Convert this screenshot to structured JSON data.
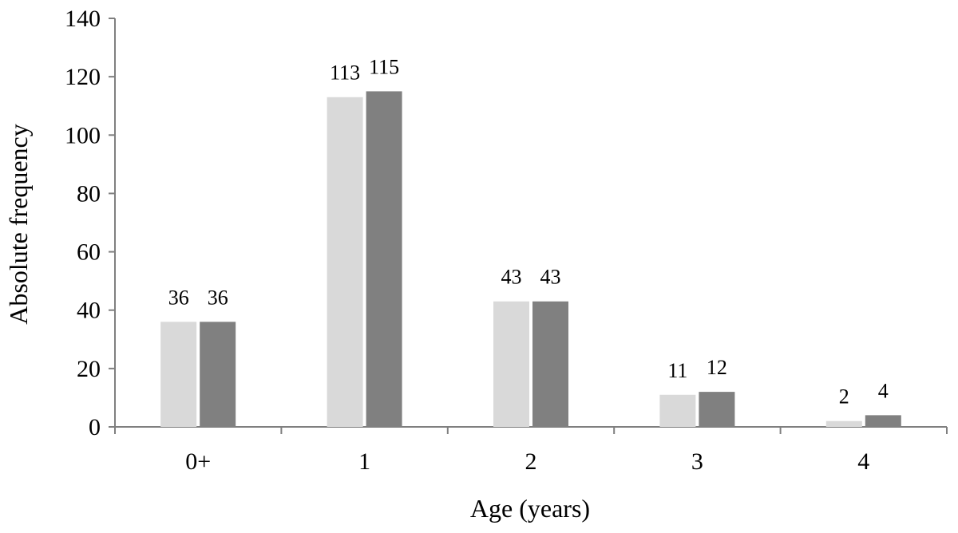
{
  "chart_data": {
    "type": "bar",
    "categories": [
      "0+",
      "1",
      "2",
      "3",
      "4"
    ],
    "series": [
      {
        "values": [
          36,
          113,
          43,
          11,
          2
        ],
        "color": "#d9d9d9"
      },
      {
        "values": [
          36,
          115,
          43,
          12,
          4
        ],
        "color": "#808080"
      }
    ],
    "xlabel": "Age (years)",
    "ylabel": "Absolute frequency",
    "ylim": [
      0,
      140
    ],
    "yticks": [
      0,
      20,
      40,
      60,
      80,
      100,
      120,
      140
    ],
    "grid": false,
    "legend": "none",
    "data_labels": true
  }
}
